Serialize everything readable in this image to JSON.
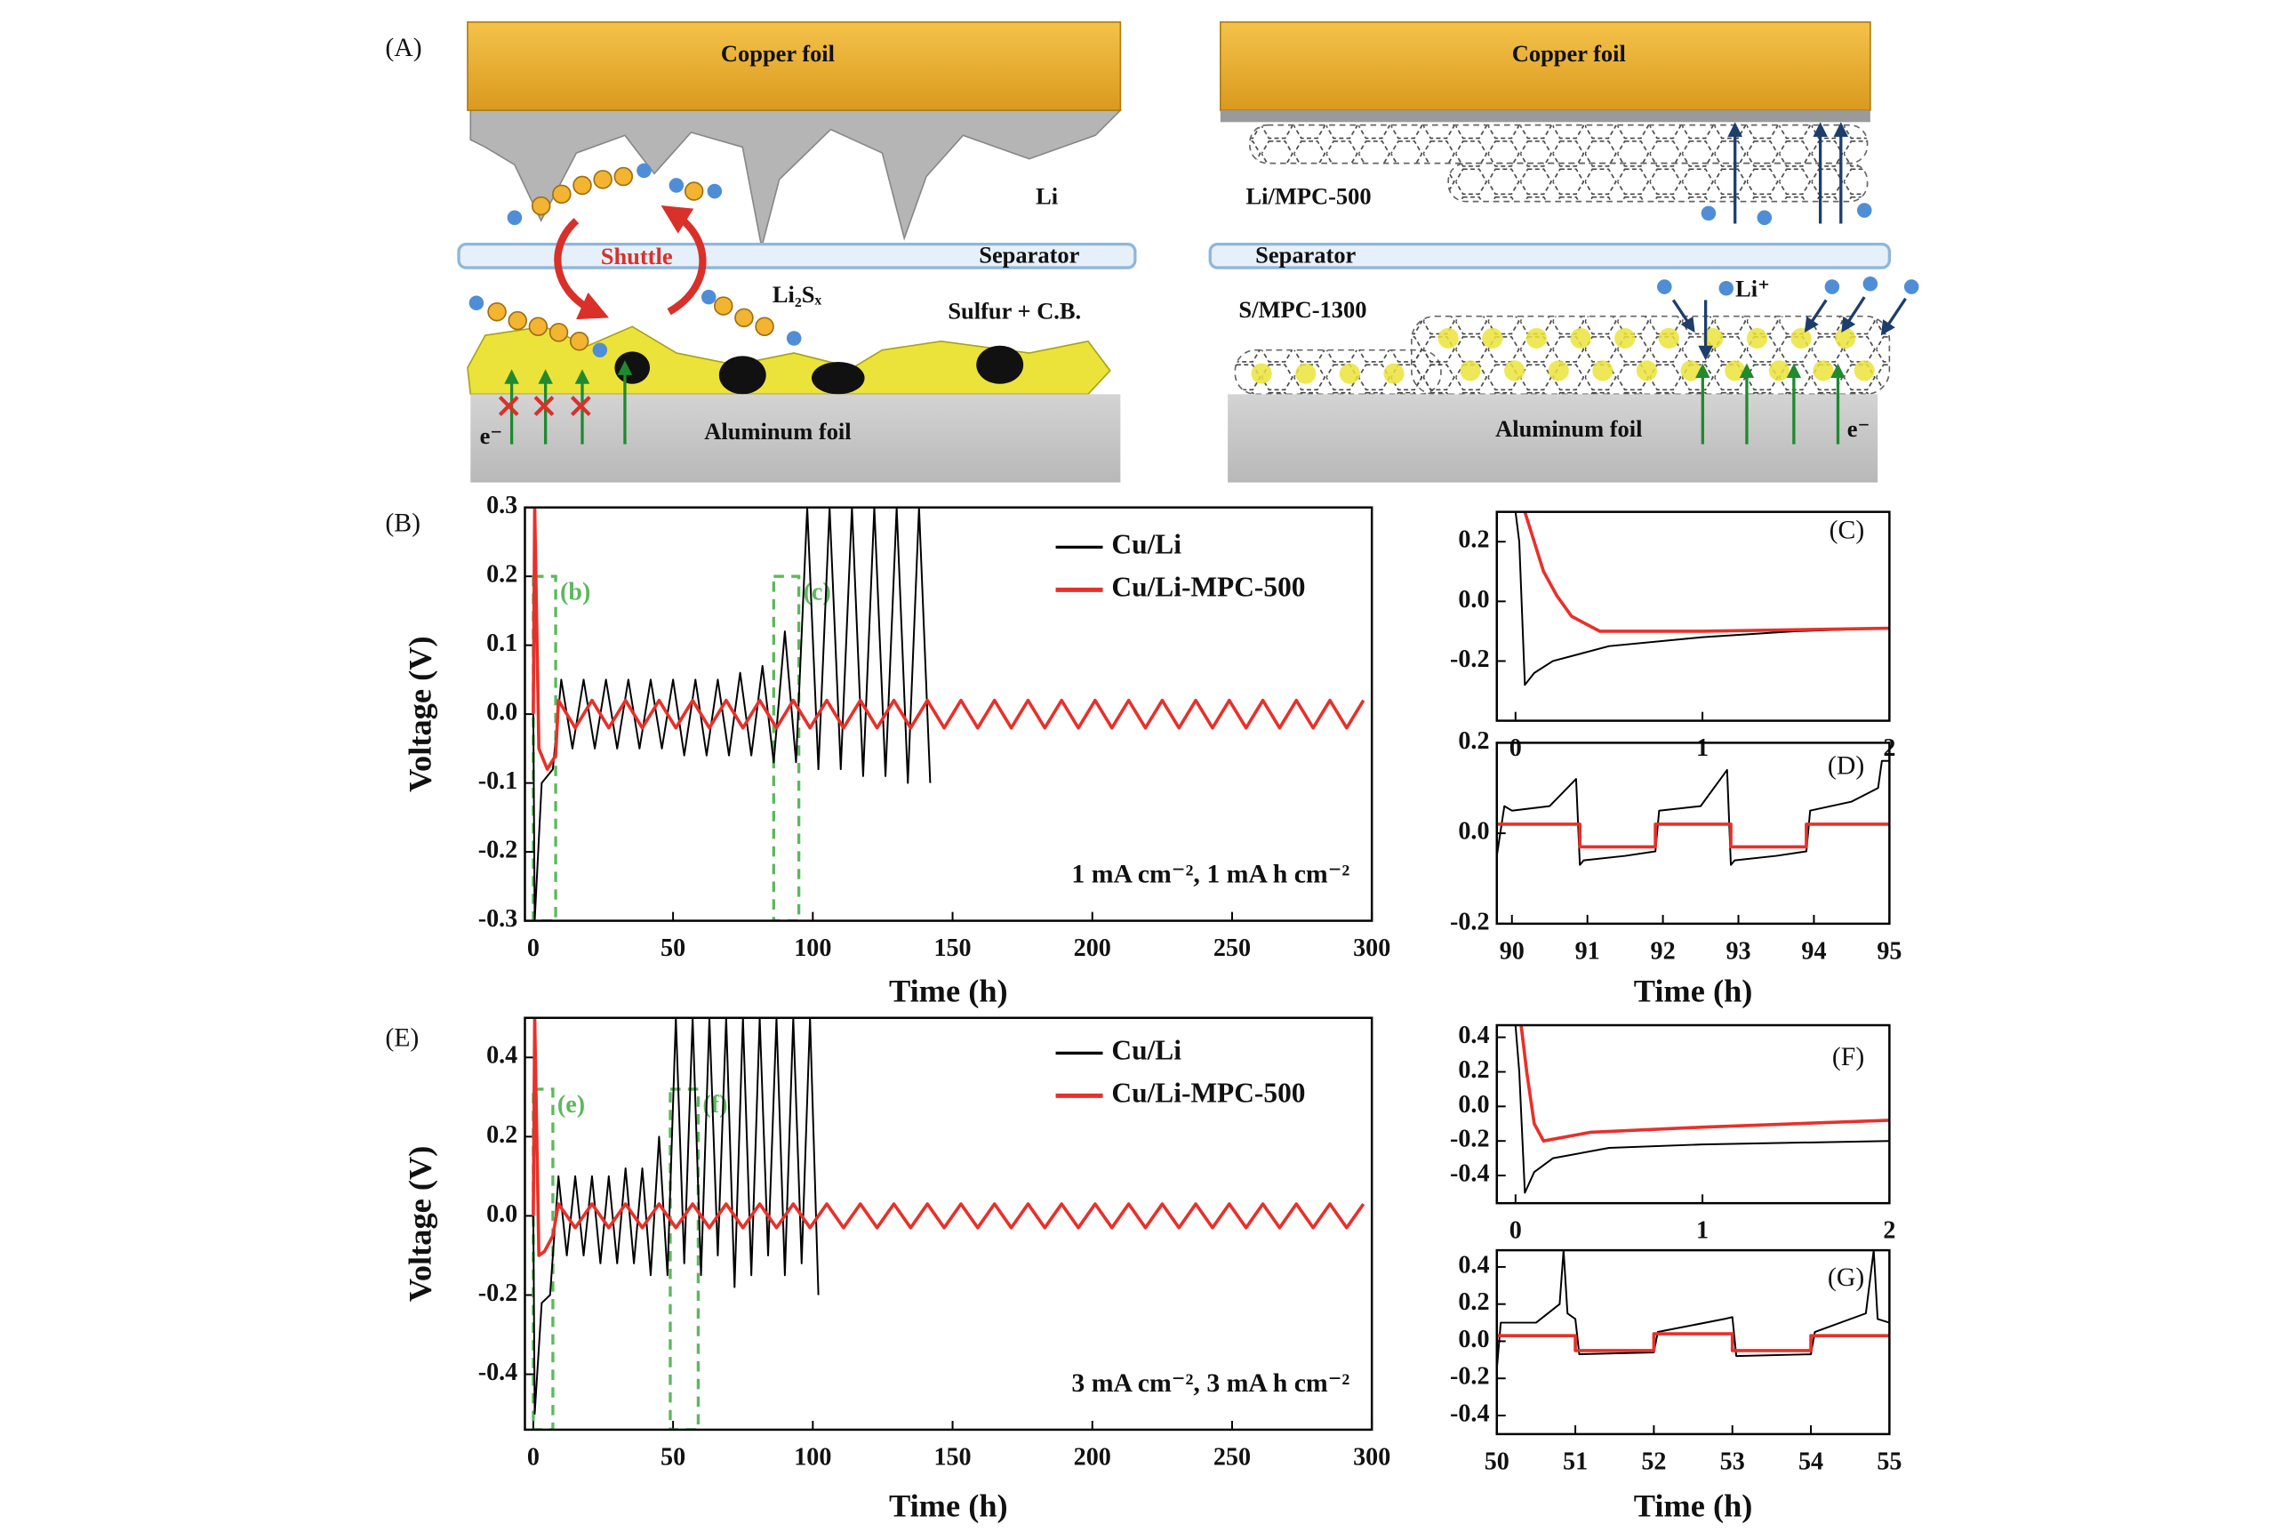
{
  "diagram": {
    "panel": "(A)",
    "left": {
      "copper": "Copper foil",
      "li": "Li",
      "shuttle": "Shuttle",
      "separator": "Separator",
      "polysulfide": "Li₂Sₓ",
      "cathode": "Sulfur + C.B.",
      "electron": "e⁻",
      "aluminum": "Aluminum foil"
    },
    "right": {
      "copper": "Copper foil",
      "anode": "Li/MPC-500",
      "separator": "Separator",
      "cathode": "S/MPC-1300",
      "ion": "Li⁺",
      "aluminum": "Aluminum foil",
      "electron": "e⁻"
    }
  },
  "chart_data": [
    {
      "type": "line",
      "panel": "(B)",
      "xlabel": "Time (h)",
      "ylabel": "Voltage (V)",
      "annotation": "1 mA cm⁻², 1 mA h cm⁻²",
      "legend": "upper right",
      "xlim": [
        -3,
        300
      ],
      "xticks": [
        0,
        50,
        100,
        150,
        200,
        250,
        300
      ],
      "ylim": [
        -0.3,
        0.3
      ],
      "yticks": [
        -0.3,
        -0.2,
        -0.1,
        {
          "value": 0,
          "label": "0.0"
        },
        0.1,
        0.2,
        0.3
      ],
      "zoom_boxes": [
        {
          "label": "(b)",
          "xlim": [
            0,
            8
          ],
          "ylim": [
            -0.3,
            0.2
          ]
        },
        {
          "label": "(c)",
          "xlim": [
            86,
            95
          ],
          "ylim": [
            -0.3,
            0.2
          ]
        }
      ],
      "series": [
        {
          "name": "Cu/Li",
          "color": "#000000",
          "x": [
            0,
            0.5,
            3,
            7,
            10,
            14,
            18,
            22,
            26,
            30,
            34,
            38,
            42,
            46,
            50,
            54,
            58,
            62,
            66,
            70,
            74,
            78,
            82,
            86,
            90,
            94,
            98,
            102,
            106,
            110,
            114,
            118,
            122,
            126,
            130,
            134,
            138,
            142
          ],
          "values": [
            0,
            -0.3,
            -0.1,
            -0.08,
            0.05,
            -0.05,
            0.05,
            -0.05,
            0.05,
            -0.05,
            0.05,
            -0.05,
            0.05,
            -0.05,
            0.05,
            -0.06,
            0.05,
            -0.06,
            0.05,
            -0.06,
            0.06,
            -0.06,
            0.07,
            -0.07,
            0.12,
            -0.07,
            0.3,
            -0.08,
            0.3,
            -0.08,
            0.3,
            -0.09,
            0.3,
            -0.09,
            0.3,
            -0.1,
            0.3,
            -0.1
          ]
        },
        {
          "name": "Cu/Li-MPC-500",
          "color": "#e8302a",
          "x": [
            0,
            0.5,
            2,
            5,
            8,
            9,
            15,
            21,
            27,
            33,
            39,
            45,
            51,
            57,
            63,
            69,
            75,
            81,
            87,
            93,
            99,
            105,
            111,
            117,
            123,
            129,
            135,
            141,
            147,
            153,
            159,
            165,
            171,
            177,
            183,
            189,
            195,
            201,
            207,
            213,
            219,
            225,
            231,
            237,
            243,
            249,
            255,
            261,
            267,
            273,
            279,
            285,
            291,
            297
          ],
          "values": [
            0,
            0.3,
            -0.05,
            -0.08,
            -0.06,
            0.02,
            -0.02,
            0.02,
            -0.02,
            0.02,
            -0.02,
            0.02,
            -0.02,
            0.02,
            -0.02,
            0.02,
            -0.02,
            0.02,
            -0.02,
            0.02,
            -0.02,
            0.02,
            -0.02,
            0.02,
            -0.02,
            0.02,
            -0.02,
            0.02,
            -0.02,
            0.02,
            -0.02,
            0.02,
            -0.02,
            0.02,
            -0.02,
            0.02,
            -0.02,
            0.02,
            -0.02,
            0.02,
            -0.02,
            0.02,
            -0.02,
            0.02,
            -0.02,
            0.02,
            -0.02,
            0.02,
            -0.02,
            0.02,
            -0.02,
            0.02,
            -0.02,
            0.02
          ]
        }
      ]
    },
    {
      "type": "line",
      "panel": "(C)",
      "xlim": [
        -0.1,
        2
      ],
      "xticks": [
        0,
        1,
        2
      ],
      "ylim": [
        -0.4,
        0.3
      ],
      "yticks": [
        -0.2,
        {
          "value": 0,
          "label": "0.0"
        },
        0.2
      ],
      "series": [
        {
          "name": "Cu/Li",
          "color": "#000000",
          "x": [
            0,
            0.02,
            0.05,
            0.1,
            0.2,
            0.5,
            1,
            1.5,
            2
          ],
          "values": [
            0.3,
            0.2,
            -0.28,
            -0.24,
            -0.2,
            -0.15,
            -0.12,
            -0.1,
            -0.09
          ]
        },
        {
          "name": "Cu/Li-MPC-500",
          "color": "#e8302a",
          "x": [
            0.05,
            0.1,
            0.15,
            0.22,
            0.3,
            0.45,
            1,
            2
          ],
          "values": [
            0.3,
            0.2,
            0.1,
            0.02,
            -0.05,
            -0.1,
            -0.1,
            -0.09
          ]
        }
      ]
    },
    {
      "type": "line",
      "panel": "(D)",
      "xlabel": "Time (h)",
      "xlim": [
        89.8,
        95
      ],
      "xticks": [
        90,
        91,
        92,
        93,
        94,
        95
      ],
      "ylim": [
        -0.2,
        0.2
      ],
      "yticks": [
        -0.2,
        {
          "value": 0,
          "label": "0.0"
        },
        0.2
      ],
      "series": [
        {
          "name": "Cu/Li",
          "color": "#000000",
          "x": [
            89.8,
            89.9,
            90.0,
            90.5,
            90.85,
            90.9,
            90.95,
            91.5,
            91.9,
            91.95,
            92.5,
            92.85,
            92.9,
            92.95,
            93.5,
            93.9,
            93.95,
            94.5,
            94.85,
            94.9,
            95
          ],
          "values": [
            -0.05,
            0.06,
            0.05,
            0.06,
            0.12,
            -0.07,
            -0.06,
            -0.05,
            -0.04,
            0.05,
            0.06,
            0.14,
            -0.07,
            -0.06,
            -0.05,
            -0.04,
            0.05,
            0.07,
            0.1,
            0.16,
            0.16
          ]
        },
        {
          "name": "Cu/Li-MPC-500",
          "color": "#e8302a",
          "x": [
            89.8,
            90.9,
            90.9,
            91.9,
            91.9,
            92.9,
            92.9,
            93.9,
            93.9,
            95
          ],
          "values": [
            0.02,
            0.02,
            -0.03,
            -0.03,
            0.02,
            0.02,
            -0.03,
            -0.03,
            0.02,
            0.02
          ]
        }
      ]
    },
    {
      "type": "line",
      "panel": "(E)",
      "xlabel": "Time (h)",
      "ylabel": "Voltage (V)",
      "annotation": "3 mA cm⁻², 3 mA h cm⁻²",
      "legend": "upper right",
      "xlim": [
        -3,
        300
      ],
      "xticks": [
        0,
        50,
        100,
        150,
        200,
        250,
        300
      ],
      "ylim": [
        -0.54,
        0.5
      ],
      "yticks": [
        -0.4,
        -0.2,
        {
          "value": 0,
          "label": "0.0"
        },
        0.2,
        0.4
      ],
      "zoom_boxes": [
        {
          "label": "(e)",
          "xlim": [
            0,
            7
          ],
          "ylim": [
            -0.54,
            0.32
          ]
        },
        {
          "label": "(f)",
          "xlim": [
            49,
            59
          ],
          "ylim": [
            -0.54,
            0.32
          ]
        }
      ],
      "series": [
        {
          "name": "Cu/Li",
          "color": "#000000",
          "x": [
            0,
            0.5,
            3,
            6,
            9,
            12,
            15,
            18,
            21,
            24,
            27,
            30,
            33,
            36,
            39,
            42,
            45,
            48,
            51,
            54,
            57,
            60,
            63,
            66,
            69,
            72,
            75,
            78,
            81,
            84,
            87,
            90,
            93,
            96,
            99,
            102
          ],
          "values": [
            0,
            -0.5,
            -0.22,
            -0.2,
            0.1,
            -0.1,
            0.1,
            -0.1,
            0.1,
            -0.12,
            0.1,
            -0.12,
            0.12,
            -0.12,
            0.12,
            -0.15,
            0.2,
            -0.15,
            0.5,
            -0.12,
            0.5,
            -0.15,
            0.5,
            -0.1,
            0.5,
            -0.18,
            0.5,
            -0.15,
            0.5,
            -0.1,
            0.5,
            -0.15,
            0.5,
            -0.12,
            0.5,
            -0.2
          ]
        },
        {
          "name": "Cu/Li-MPC-500",
          "color": "#e8302a",
          "x": [
            0,
            0.5,
            2,
            4,
            7,
            9,
            15,
            21,
            27,
            33,
            39,
            45,
            51,
            57,
            63,
            69,
            75,
            81,
            87,
            93,
            99,
            105,
            111,
            117,
            123,
            129,
            135,
            141,
            147,
            153,
            159,
            165,
            171,
            177,
            183,
            189,
            195,
            201,
            207,
            213,
            219,
            225,
            231,
            237,
            243,
            249,
            255,
            261,
            267,
            273,
            279,
            285,
            291,
            297
          ],
          "values": [
            0,
            0.5,
            -0.1,
            -0.09,
            -0.05,
            0.03,
            -0.03,
            0.03,
            -0.03,
            0.03,
            -0.03,
            0.03,
            -0.03,
            0.03,
            -0.03,
            0.03,
            -0.03,
            0.03,
            -0.03,
            0.03,
            -0.03,
            0.03,
            -0.03,
            0.03,
            -0.03,
            0.03,
            -0.03,
            0.03,
            -0.03,
            0.03,
            -0.03,
            0.03,
            -0.03,
            0.03,
            -0.03,
            0.03,
            -0.03,
            0.03,
            -0.03,
            0.03,
            -0.03,
            0.03,
            -0.03,
            0.03,
            -0.03,
            0.03,
            -0.03,
            0.03,
            -0.03,
            0.03,
            -0.03,
            0.03,
            -0.03,
            0.03
          ]
        }
      ]
    },
    {
      "type": "line",
      "panel": "(F)",
      "xlim": [
        -0.1,
        2
      ],
      "xticks": [
        0,
        1,
        2
      ],
      "ylim": [
        -0.56,
        0.47
      ],
      "yticks": [
        -0.4,
        -0.2,
        {
          "value": 0,
          "label": "0.0"
        },
        0.2,
        0.4
      ],
      "series": [
        {
          "name": "Cu/Li",
          "color": "#000000",
          "x": [
            0,
            0.02,
            0.05,
            0.1,
            0.2,
            0.5,
            1,
            2
          ],
          "values": [
            0.47,
            0.2,
            -0.5,
            -0.38,
            -0.3,
            -0.24,
            -0.22,
            -0.2
          ]
        },
        {
          "name": "Cu/Li-MPC-500",
          "color": "#e8302a",
          "x": [
            0.03,
            0.06,
            0.1,
            0.15,
            0.4,
            1,
            1.5,
            2
          ],
          "values": [
            0.47,
            0.2,
            -0.1,
            -0.2,
            -0.15,
            -0.12,
            -0.1,
            -0.08
          ]
        }
      ]
    },
    {
      "type": "line",
      "panel": "(G)",
      "xlabel": "Time (h)",
      "xlim": [
        50,
        55
      ],
      "xticks": [
        50,
        51,
        52,
        53,
        54,
        55
      ],
      "ylim": [
        -0.5,
        0.49
      ],
      "yticks": [
        -0.4,
        -0.2,
        {
          "value": 0,
          "label": "0.0"
        },
        0.2,
        0.4
      ],
      "series": [
        {
          "name": "Cu/Li",
          "color": "#000000",
          "x": [
            50,
            50.05,
            50.5,
            50.8,
            50.85,
            50.9,
            51,
            51.05,
            52,
            52.05,
            52.9,
            53,
            53.05,
            54,
            54.05,
            54.7,
            54.8,
            54.85,
            55
          ],
          "values": [
            -0.15,
            0.1,
            0.1,
            0.2,
            0.49,
            0.15,
            0.12,
            -0.07,
            -0.06,
            0.05,
            0.12,
            0.13,
            -0.08,
            -0.07,
            0.05,
            0.15,
            0.49,
            0.12,
            0.1
          ]
        },
        {
          "name": "Cu/Li-MPC-500",
          "color": "#e8302a",
          "x": [
            50,
            51,
            51,
            52,
            52,
            53,
            53,
            54,
            54,
            55
          ],
          "values": [
            0.03,
            0.03,
            -0.05,
            -0.05,
            0.04,
            0.04,
            -0.05,
            -0.05,
            0.03,
            0.03
          ]
        }
      ]
    }
  ]
}
